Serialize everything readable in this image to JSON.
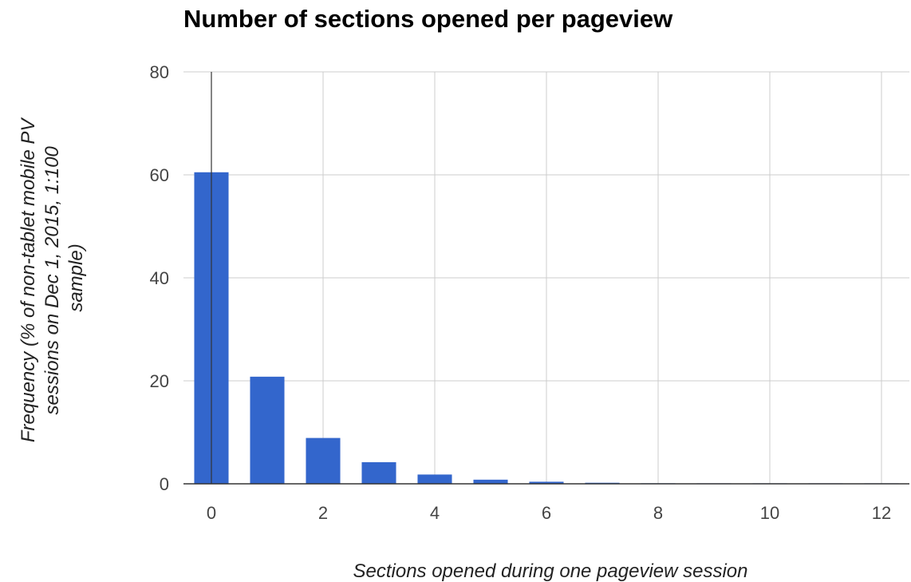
{
  "chart_data": {
    "type": "bar",
    "title": "Number of sections opened per pageview",
    "xlabel": "Sections opened during one pageview session",
    "ylabel_lines": [
      "Frequency (% of non-tablet mobile PV",
      "sessions on Dec 1, 2015, 1:100",
      "sample)"
    ],
    "x": [
      0,
      1,
      2,
      3,
      4,
      5,
      6,
      7,
      8,
      9,
      10,
      11,
      12
    ],
    "values": [
      60.5,
      20.8,
      8.9,
      4.2,
      1.8,
      0.8,
      0.4,
      0.2,
      0.1,
      0.05,
      0.05,
      0.05,
      0.05
    ],
    "xlim": [
      -0.5,
      12.5
    ],
    "ylim": [
      0,
      80
    ],
    "x_ticks": [
      0,
      2,
      4,
      6,
      8,
      10,
      12
    ],
    "y_ticks": [
      0,
      20,
      40,
      60,
      80
    ],
    "grid": true,
    "bar_color": "#3366cc",
    "grid_color": "#cccccc",
    "baseline_color": "#333333"
  }
}
